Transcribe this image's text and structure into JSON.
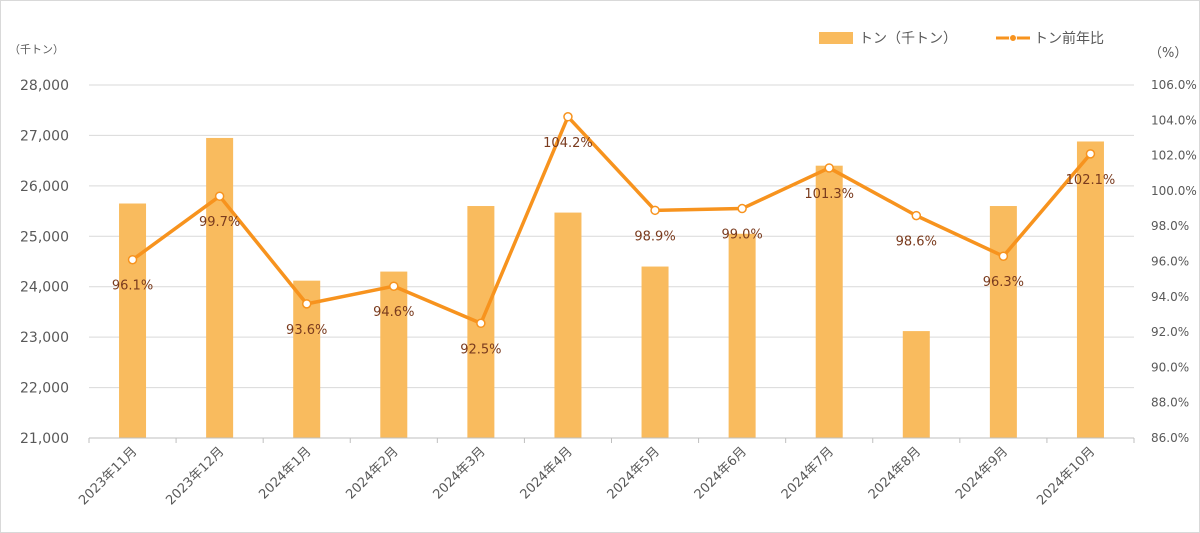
{
  "chart_data": {
    "type": "bar+line",
    "categories": [
      "2023年11月",
      "2023年12月",
      "2024年1月",
      "2024年2月",
      "2024年3月",
      "2024年4月",
      "2024年5月",
      "2024年6月",
      "2024年7月",
      "2024年8月",
      "2024年9月",
      "2024年10月"
    ],
    "series": [
      {
        "name": "トン（千トン）",
        "type": "bar",
        "axis": "left",
        "color": "#F9BB5E",
        "values": [
          25650,
          26950,
          24120,
          24300,
          25600,
          25470,
          24400,
          25050,
          26400,
          23120,
          25600,
          26880
        ]
      },
      {
        "name": "トン前年比",
        "type": "line",
        "axis": "right",
        "color": "#F7931E",
        "values": [
          96.1,
          99.7,
          93.6,
          94.6,
          92.5,
          104.2,
          98.9,
          99.0,
          101.3,
          98.6,
          96.3,
          102.1
        ],
        "labels": [
          "96.1%",
          "99.7%",
          "93.6%",
          "94.6%",
          "92.5%",
          "104.2%",
          "98.9%",
          "99.0%",
          "101.3%",
          "98.6%",
          "96.3%",
          "102.1%"
        ]
      }
    ],
    "left_unit": "（千トン）",
    "right_unit": "（%）",
    "ylim_left": [
      21000,
      28000
    ],
    "ylim_right": [
      86,
      106
    ],
    "left_ticks": [
      "21,000",
      "22,000",
      "23,000",
      "24,000",
      "25,000",
      "26,000",
      "27,000",
      "28,000"
    ],
    "right_ticks": [
      "86.0%",
      "88.0%",
      "90.0%",
      "92.0%",
      "94.0%",
      "96.0%",
      "98.0%",
      "100.0%",
      "102.0%",
      "104.0%",
      "106.0%"
    ],
    "grid": true,
    "legend_position": "top-right"
  }
}
